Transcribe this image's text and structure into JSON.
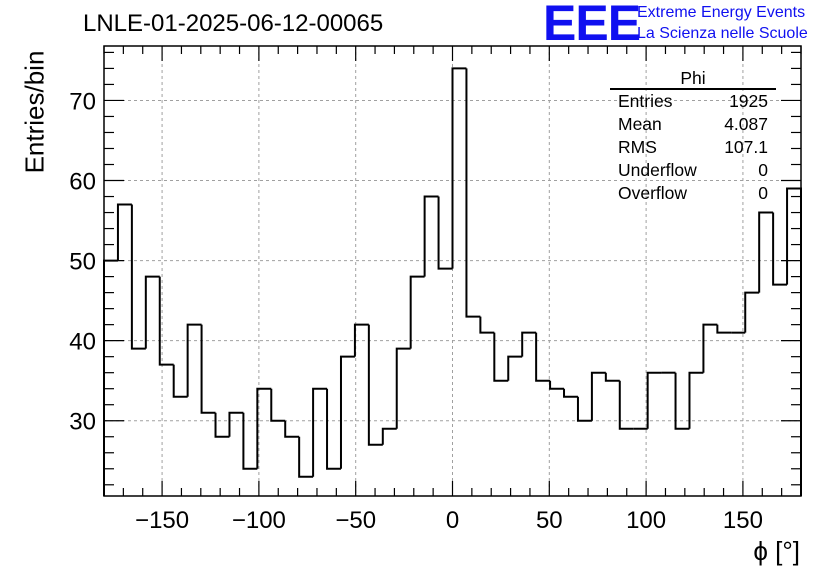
{
  "header": {
    "title": "LNLE-01-2025-06-12-00065",
    "logo_text": "EEE",
    "logo_line1": "Extreme Energy Events",
    "logo_line2": "La Scienza nelle Scuole",
    "brand_color": "#1010f0"
  },
  "stats_box": {
    "title": "Phi",
    "rows": [
      {
        "label": "Entries",
        "value": "1925"
      },
      {
        "label": "Mean",
        "value": "4.087"
      },
      {
        "label": "RMS",
        "value": "107.1"
      },
      {
        "label": "Underflow",
        "value": "0"
      },
      {
        "label": "Overflow",
        "value": "0"
      }
    ]
  },
  "chart_data": {
    "type": "bar",
    "histogram": true,
    "title": "LNLE-01-2025-06-12-00065",
    "xlabel": "ϕ [°]",
    "ylabel": "Entries/bin",
    "xlim": [
      -180,
      180
    ],
    "ylim": [
      20.6,
      76.8
    ],
    "bin_width": 7.2,
    "xticks": [
      -150,
      -100,
      -50,
      0,
      50,
      100,
      150
    ],
    "xtick_labels": [
      "−150",
      "−100",
      "−50",
      "0",
      "50",
      "100",
      "150"
    ],
    "yticks": [
      30,
      40,
      50,
      60,
      70
    ],
    "ytick_labels": [
      "30",
      "40",
      "50",
      "60",
      "70"
    ],
    "grid": true,
    "values": [
      50,
      57,
      39,
      48,
      37,
      33,
      42,
      31,
      28,
      31,
      24,
      34,
      30,
      28,
      23,
      34,
      24,
      38,
      42,
      27,
      29,
      39,
      48,
      58,
      49,
      74,
      43,
      41,
      35,
      38,
      41,
      35,
      34,
      33,
      30,
      36,
      35,
      29,
      29,
      36,
      36,
      29,
      36,
      42,
      41,
      41,
      46,
      56,
      47,
      59
    ]
  }
}
